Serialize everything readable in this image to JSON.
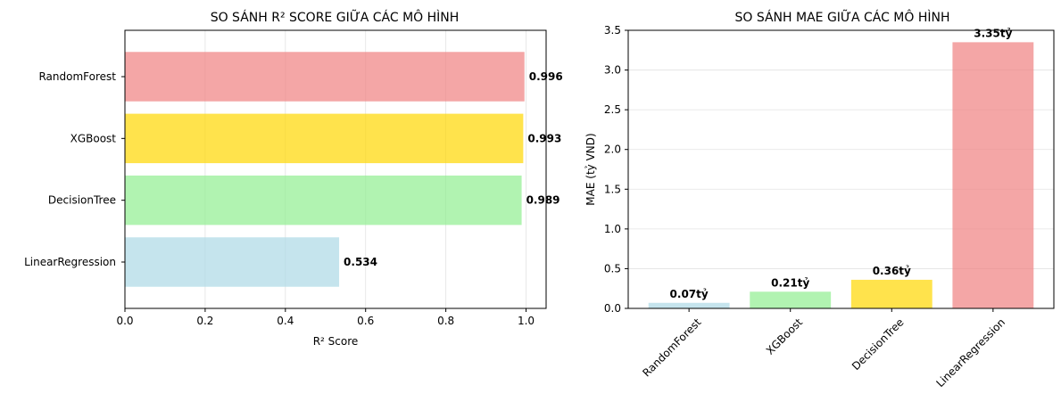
{
  "chart_data": [
    {
      "type": "bar",
      "orientation": "horizontal",
      "title": "SO SÁNH R² SCORE GIỮA CÁC MÔ HÌNH",
      "xlabel": "R² Score",
      "ylabel": "",
      "categories": [
        "LinearRegression",
        "DecisionTree",
        "XGBoost",
        "RandomForest"
      ],
      "values": [
        0.534,
        0.989,
        0.993,
        0.996
      ],
      "data_labels": [
        "0.534",
        "0.989",
        "0.993",
        "0.996"
      ],
      "colors": [
        "#add8e6",
        "#90ee90",
        "#ffd700",
        "#f08080"
      ],
      "xlim": [
        0,
        1.05
      ],
      "xticks": [
        "0.0",
        "0.2",
        "0.4",
        "0.6",
        "0.8",
        "1.0"
      ],
      "grid": "x"
    },
    {
      "type": "bar",
      "orientation": "vertical",
      "title": "SO SÁNH MAE GIỮA CÁC MÔ HÌNH",
      "xlabel": "",
      "ylabel": "MAE (tỷ VND)",
      "categories": [
        "RandomForest",
        "XGBoost",
        "DecisionTree",
        "LinearRegression"
      ],
      "values": [
        0.07,
        0.21,
        0.36,
        3.35
      ],
      "data_labels": [
        "0.07tỷ",
        "0.21tỷ",
        "0.36tỷ",
        "3.35tỷ"
      ],
      "colors": [
        "#add8e6",
        "#90ee90",
        "#ffd700",
        "#f08080"
      ],
      "ylim": [
        0,
        3.5
      ],
      "yticks": [
        "0.0",
        "0.5",
        "1.0",
        "1.5",
        "2.0",
        "2.5",
        "3.0",
        "3.5"
      ],
      "grid": "y"
    }
  ]
}
